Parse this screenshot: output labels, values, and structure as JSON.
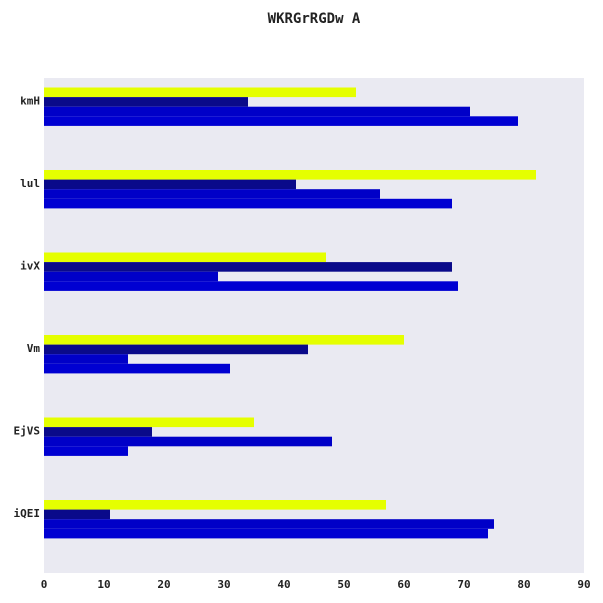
{
  "chart_data": {
    "type": "bar",
    "orientation": "horizontal",
    "title": "WKRGrRGDw A",
    "xlabel": "",
    "ylabel": "",
    "xlim": [
      0,
      90
    ],
    "x_ticks": [
      0,
      10,
      20,
      30,
      40,
      50,
      60,
      70,
      80,
      90
    ],
    "categories": [
      "kmH",
      "lul",
      "ivX",
      "Vm",
      "EjVS",
      "iQEI"
    ],
    "series": [
      {
        "color": "#e5ff00",
        "values": [
          52,
          82,
          47,
          60,
          35,
          57
        ]
      },
      {
        "color": "#0a0a8a",
        "values": [
          34,
          42,
          68,
          44,
          18,
          11
        ]
      },
      {
        "color": "#0000c8",
        "values": [
          71,
          56,
          29,
          14,
          48,
          75
        ]
      },
      {
        "color": "#0000d2",
        "values": [
          79,
          68,
          69,
          31,
          14,
          74
        ]
      }
    ],
    "grid": false,
    "background": "#eaeaf2"
  }
}
